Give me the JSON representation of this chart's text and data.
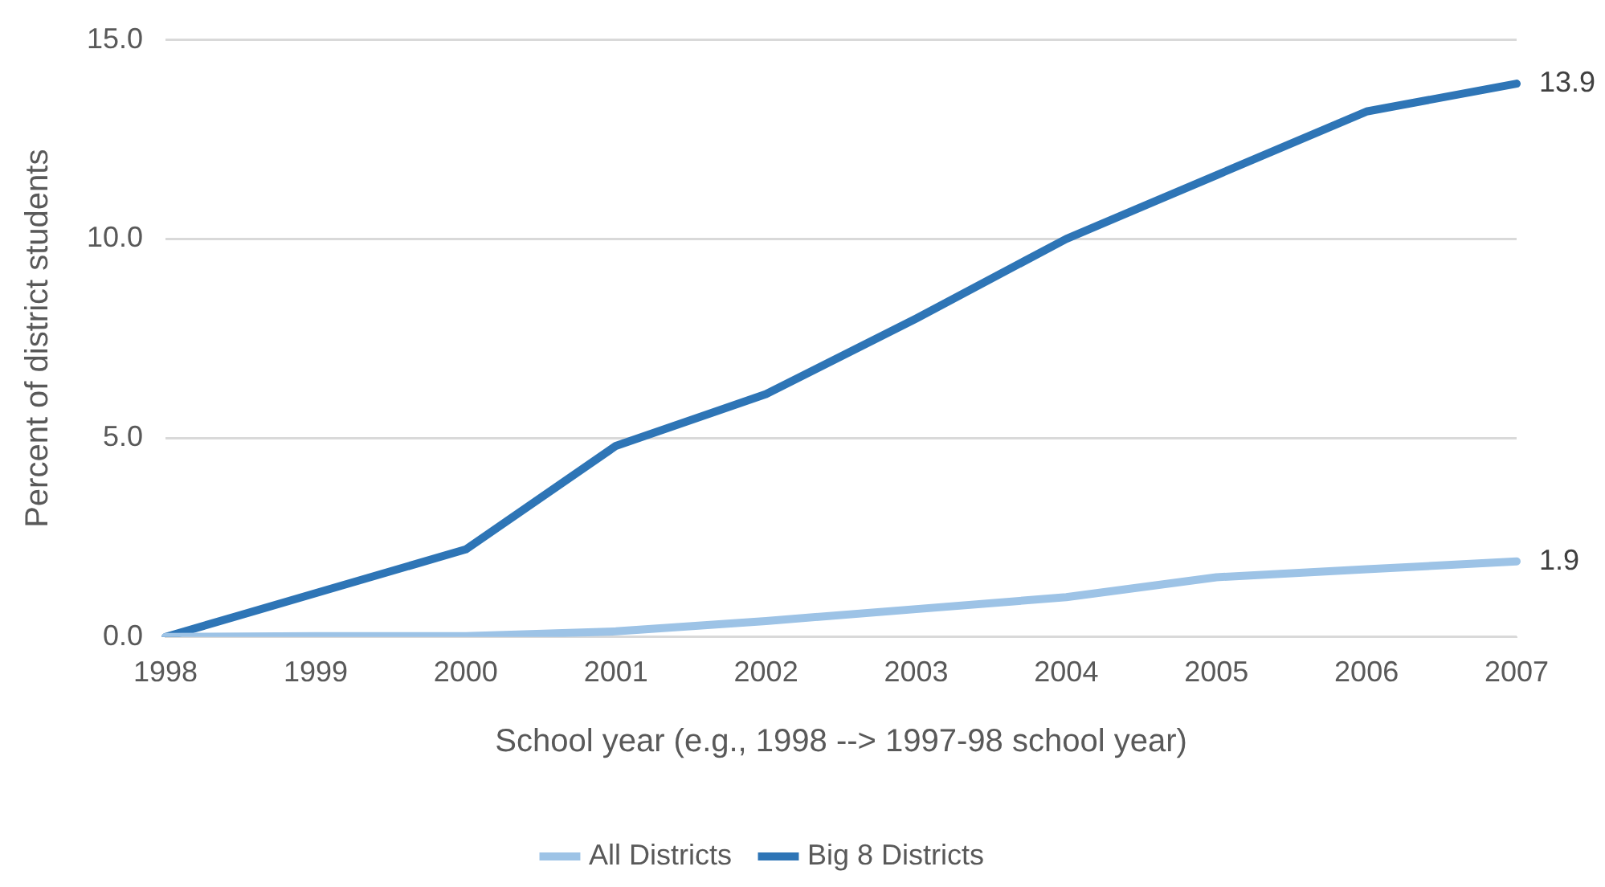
{
  "chart_data": {
    "type": "line",
    "xlabel": "School year (e.g., 1998 --> 1997-98 school year)",
    "ylabel": "Percent of district students",
    "categories": [
      "1998",
      "1999",
      "2000",
      "2001",
      "2002",
      "2003",
      "2004",
      "2005",
      "2006",
      "2007"
    ],
    "series": [
      {
        "name": "All Districts",
        "color": "#9dc3e6",
        "values": [
          0,
          0.02,
          0.02,
          0.14,
          0.4,
          0.7,
          1.0,
          1.5,
          1.7,
          1.9
        ],
        "value_labels": [
          null,
          null,
          null,
          null,
          null,
          null,
          null,
          null,
          null,
          "1.9"
        ]
      },
      {
        "name": "Big 8 Districts",
        "color": "#2e75b6",
        "values": [
          0,
          1.1,
          2.2,
          4.8,
          6.1,
          8.0,
          10.0,
          11.6,
          13.2,
          13.9
        ],
        "value_labels": [
          null,
          null,
          null,
          null,
          null,
          null,
          null,
          null,
          null,
          "13.9"
        ]
      }
    ],
    "ylim": [
      0,
      15
    ],
    "yticks": [
      {
        "value": 0,
        "label": "0.0"
      },
      {
        "value": 5,
        "label": "5.0"
      },
      {
        "value": 10,
        "label": "10.0"
      },
      {
        "value": 15,
        "label": "15.0"
      }
    ],
    "grid": "y",
    "legend": "bottom",
    "marker": "none",
    "line_style": "solid"
  }
}
